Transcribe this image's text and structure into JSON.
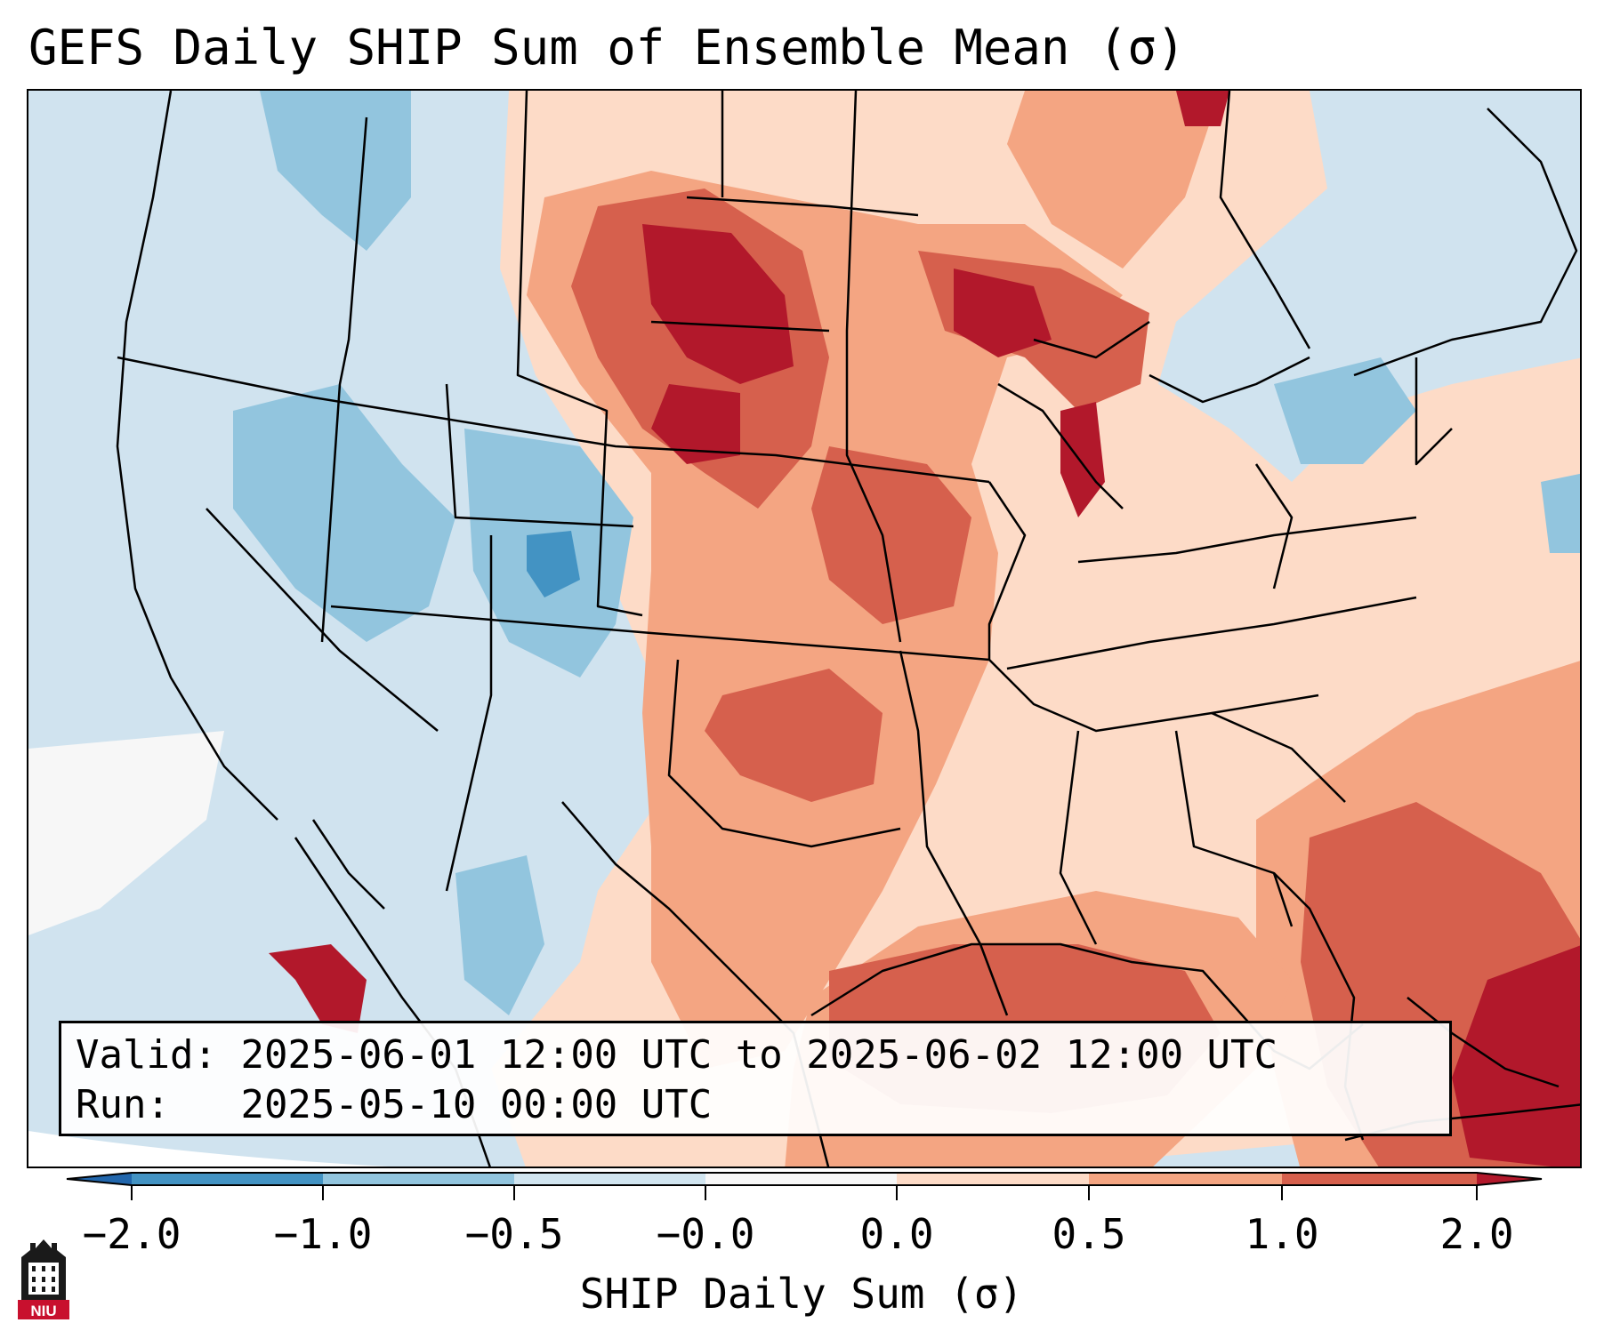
{
  "title": "GEFS Daily SHIP Sum of Ensemble Mean (σ)",
  "info": {
    "valid_label": "Valid:",
    "valid_value": "2025-06-01 12:00 UTC to 2025-06-02 12:00 UTC",
    "run_label": "Run:",
    "run_value": "2025-05-10 00:00 UTC"
  },
  "colorbar": {
    "label": "SHIP Daily Sum (σ)",
    "ticks": [
      "−2.0",
      "−1.0",
      "−0.5",
      "−0.0",
      "0.0",
      "0.5",
      "1.0",
      "2.0"
    ],
    "bins": [
      {
        "range": "-2.0 to -1.0",
        "color": "#4393c3"
      },
      {
        "range": "-1.0 to -0.5",
        "color": "#92c5de"
      },
      {
        "range": "-0.5 to -0.0",
        "color": "#d1e5f0"
      },
      {
        "range": "-0.0 to 0.0",
        "color": "#f7f7f7"
      },
      {
        "range": "0.0 to 0.5",
        "color": "#fddbc7"
      },
      {
        "range": "0.5 to 1.0",
        "color": "#f4a582"
      },
      {
        "range": "1.0 to 2.0",
        "color": "#d6604d"
      }
    ],
    "under_color": "#2166ac",
    "over_color": "#b2182b"
  },
  "logo": {
    "text": "NIU",
    "color": "#c8102e"
  }
}
